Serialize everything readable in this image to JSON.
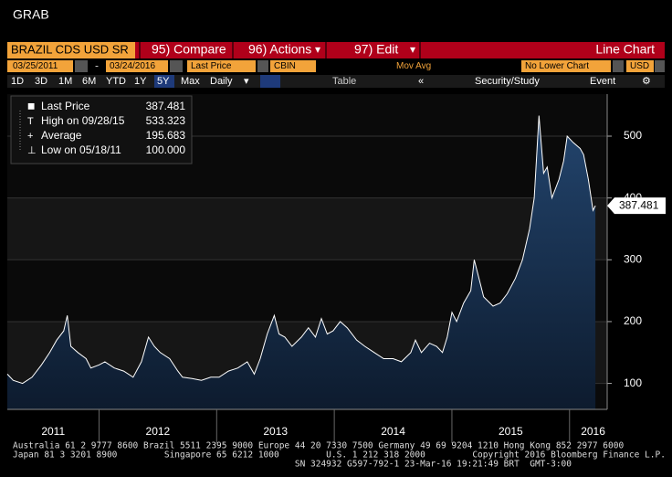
{
  "toolbar": {
    "grab": "GRAB",
    "security": "BRAZIL CDS USD SR",
    "compare": "95) Compare",
    "actions": "96) Actions",
    "edit": "97) Edit",
    "chart_type": "Line Chart"
  },
  "controls": {
    "start_date": "03/25/2011",
    "end_date": "03/24/2016",
    "price_field": "Last Price",
    "source": "CBIN",
    "mov_avg": "Mov Avg",
    "lower_chart": "No Lower Chart",
    "currency": "USD"
  },
  "periods": [
    "1D",
    "3D",
    "1M",
    "6M",
    "YTD",
    "1Y",
    "5Y",
    "Max"
  ],
  "selected_period": 6,
  "frequency": "Daily",
  "table": "Table",
  "study": "Security/Study",
  "event": "Event",
  "legend": [
    {
      "label": "Last Price",
      "value": "387.481"
    },
    {
      "label": "High on 09/28/15",
      "value": "533.323"
    },
    {
      "label": "Average",
      "value": "195.683"
    },
    {
      "label": "Low on 05/18/11",
      "value": "100.000"
    }
  ],
  "chart_data": {
    "type": "line",
    "color": "#ffffff",
    "fill": "#1b3658",
    "x": [
      2011.22,
      2011.27,
      2011.35,
      2011.43,
      2011.51,
      2011.58,
      2011.64,
      2011.7,
      2011.73,
      2011.76,
      2011.82,
      2011.89,
      2011.93,
      2012.0,
      2012.05,
      2012.13,
      2012.21,
      2012.29,
      2012.36,
      2012.42,
      2012.47,
      2012.52,
      2012.6,
      2012.67,
      2012.71,
      2012.79,
      2012.87,
      2012.95,
      2013.02,
      2013.1,
      2013.18,
      2013.26,
      2013.32,
      2013.37,
      2013.43,
      2013.49,
      2013.53,
      2013.58,
      2013.64,
      2013.72,
      2013.78,
      2013.84,
      2013.89,
      2013.94,
      2013.99,
      2014.05,
      2014.11,
      2014.19,
      2014.26,
      2014.34,
      2014.42,
      2014.5,
      2014.57,
      2014.65,
      2014.69,
      2014.74,
      2014.81,
      2014.87,
      2014.92,
      2014.96,
      2015.0,
      2015.04,
      2015.1,
      2015.16,
      2015.19,
      2015.23,
      2015.27,
      2015.35,
      2015.41,
      2015.47,
      2015.54,
      2015.6,
      2015.66,
      2015.7,
      2015.74,
      2015.78,
      2015.81,
      2015.85,
      2015.91,
      2015.95,
      2015.98,
      2016.03,
      2016.09,
      2016.12,
      2016.16,
      2016.2,
      2016.22
    ],
    "values": [
      115,
      105,
      100,
      110,
      130,
      150,
      170,
      185,
      210,
      160,
      150,
      140,
      125,
      130,
      135,
      125,
      120,
      110,
      135,
      175,
      160,
      150,
      140,
      120,
      110,
      108,
      105,
      110,
      110,
      120,
      125,
      135,
      115,
      140,
      180,
      210,
      180,
      175,
      160,
      175,
      190,
      175,
      205,
      180,
      185,
      200,
      190,
      170,
      160,
      150,
      140,
      140,
      135,
      150,
      170,
      150,
      165,
      160,
      150,
      175,
      215,
      200,
      230,
      250,
      300,
      270,
      240,
      225,
      230,
      245,
      270,
      300,
      350,
      400,
      533.323,
      440,
      450,
      400,
      430,
      460,
      500,
      490,
      480,
      470,
      430,
      380,
      387.481
    ],
    "last_price_label": "387.481",
    "xlim": [
      2011.22,
      2016.32
    ],
    "ylim": [
      58,
      568
    ],
    "yticks": [
      100,
      200,
      300,
      400,
      500
    ],
    "xticks": [
      {
        "value": 2011.61,
        "label": "2011"
      },
      {
        "value": 2012.5,
        "label": "2012"
      },
      {
        "value": 2013.5,
        "label": "2013"
      },
      {
        "value": 2014.5,
        "label": "2014"
      },
      {
        "value": 2015.5,
        "label": "2015"
      },
      {
        "value": 2016.2,
        "label": "2016"
      }
    ],
    "year_boundaries": [
      2012,
      2013,
      2014,
      2015,
      2016
    ],
    "grid": true
  },
  "footer": [
    "Australia 61 2 9777 8600 Brazil 5511 2395 9000 Europe 44 20 7330 7500 Germany 49 69 9204 1210 Hong Kong 852 2977 6000",
    "Japan 81 3 3201 8900         Singapore 65 6212 1000         U.S. 1 212 318 2000         Copyright 2016 Bloomberg Finance L.P.",
    "                                                      SN 324932 G597-792-1 23-Mar-16 19:21:49 BRT  GMT-3:00"
  ]
}
